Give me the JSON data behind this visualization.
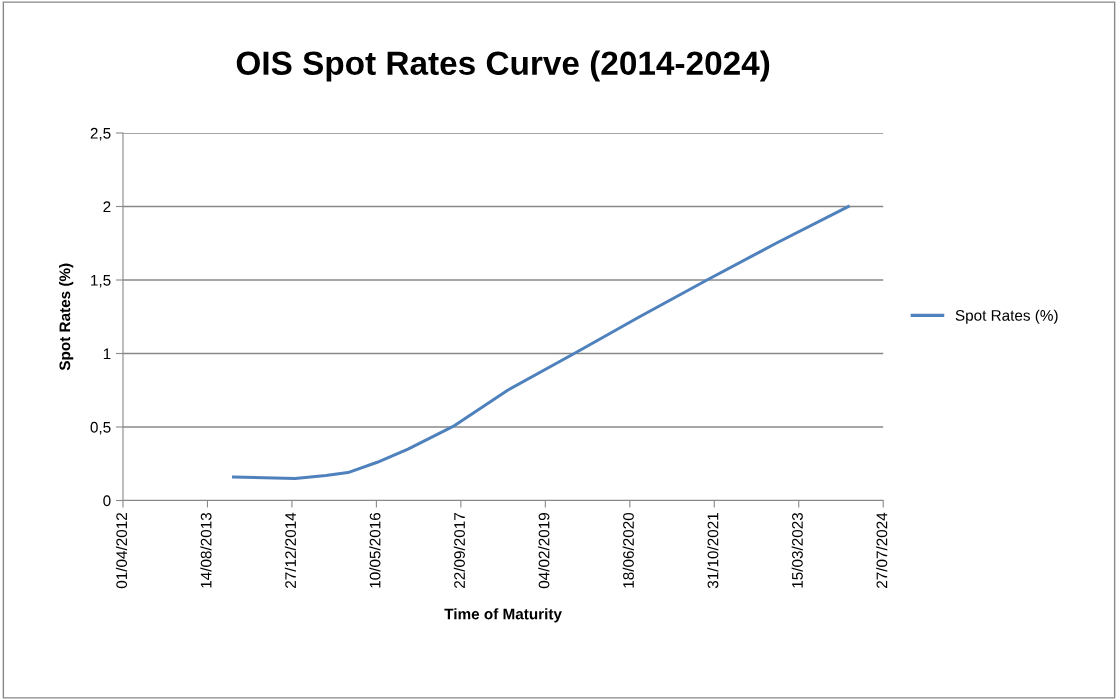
{
  "chart_data": {
    "type": "line",
    "title": "OIS Spot Rates Curve (2014-2024)",
    "xlabel": "Time of Maturity",
    "ylabel": "Spot Rates (%)",
    "x": [
      "2014-01-15",
      "2014-07-15",
      "2015-01-15",
      "2015-07-15",
      "2015-11-24",
      "2016-05-15",
      "2016-11-13",
      "2017-08-16",
      "2018-06-26",
      "2019-07-25",
      "2020-08-15",
      "2021-09-18",
      "2022-11-01",
      "2024-01-02"
    ],
    "series": [
      {
        "name": "Spot Rates (%)",
        "color": "#4f81bd",
        "values": [
          0.16,
          0.155,
          0.15,
          0.17,
          0.19,
          0.26,
          0.35,
          0.51,
          0.75,
          1.0,
          1.25,
          1.5,
          1.75,
          2.0
        ]
      }
    ],
    "xlim": [
      "2012-04-01",
      "2024-07-27"
    ],
    "xticks": [
      {
        "value": "2012-04-01",
        "label": "01/04/2012"
      },
      {
        "value": "2013-08-14",
        "label": "14/08/2013"
      },
      {
        "value": "2014-12-27",
        "label": "27/12/2014"
      },
      {
        "value": "2016-05-10",
        "label": "10/05/2016"
      },
      {
        "value": "2017-09-22",
        "label": "22/09/2017"
      },
      {
        "value": "2019-02-04",
        "label": "04/02/2019"
      },
      {
        "value": "2020-06-18",
        "label": "18/06/2020"
      },
      {
        "value": "2021-10-31",
        "label": "31/10/2021"
      },
      {
        "value": "2023-03-15",
        "label": "15/03/2023"
      },
      {
        "value": "2024-07-27",
        "label": "27/07/2024"
      }
    ],
    "ylim": [
      0,
      2.5
    ],
    "yticks": [
      0,
      {
        "value": 0.5,
        "label": "0,5"
      },
      1,
      {
        "value": 1.5,
        "label": "1,5"
      },
      2,
      {
        "value": 2.5,
        "label": "2,5"
      }
    ],
    "grid": "y",
    "legend": "right",
    "marker": "none",
    "line_style": "solid"
  }
}
